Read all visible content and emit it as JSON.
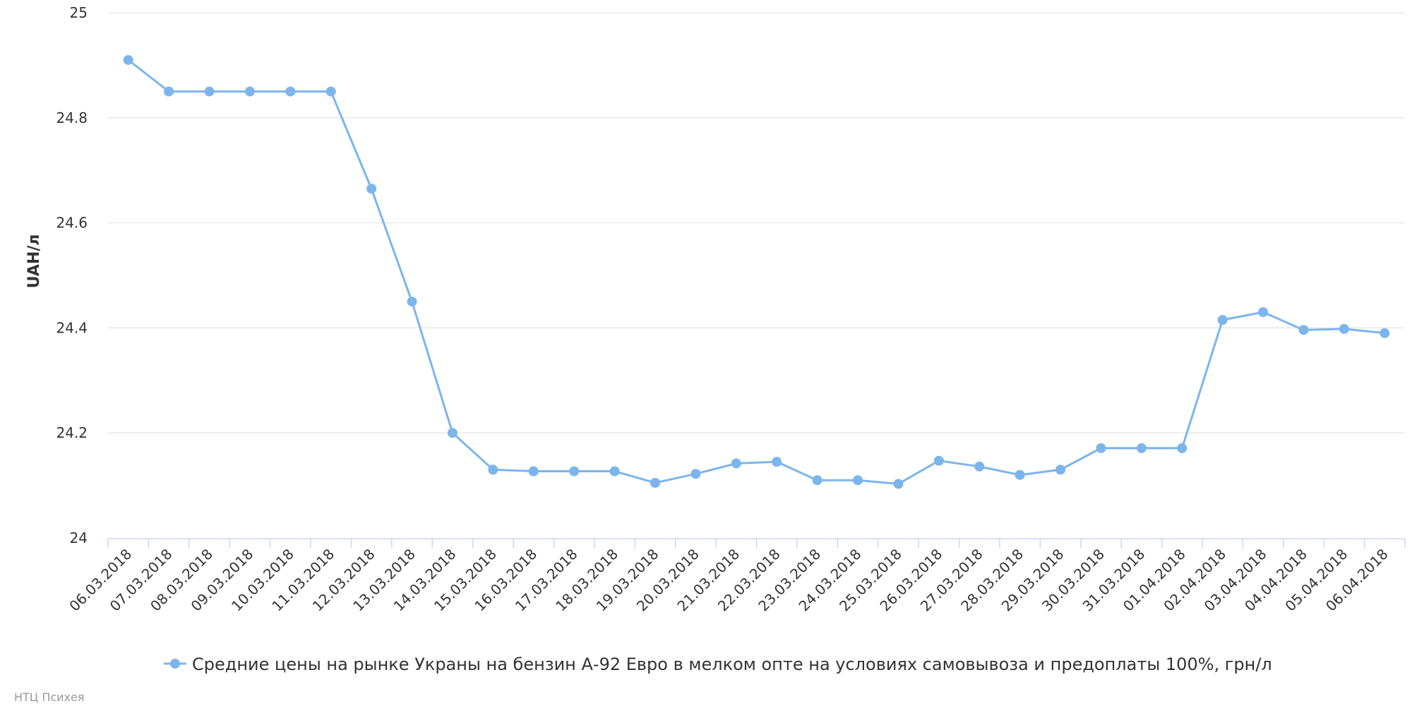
{
  "chart_data": {
    "type": "line",
    "title": "",
    "xlabel": "",
    "ylabel": "UAH/л",
    "ylim": [
      24,
      25
    ],
    "yticks": [
      "24",
      "24.2",
      "24.4",
      "24.6",
      "24.8",
      "25"
    ],
    "grid": true,
    "legend_position": "bottom-center",
    "categories": [
      "06.03.2018",
      "07.03.2018",
      "08.03.2018",
      "09.03.2018",
      "10.03.2018",
      "11.03.2018",
      "12.03.2018",
      "13.03.2018",
      "14.03.2018",
      "15.03.2018",
      "16.03.2018",
      "17.03.2018",
      "18.03.2018",
      "19.03.2018",
      "20.03.2018",
      "21.03.2018",
      "22.03.2018",
      "23.03.2018",
      "24.03.2018",
      "25.03.2018",
      "26.03.2018",
      "27.03.2018",
      "28.03.2018",
      "29.03.2018",
      "30.03.2018",
      "31.03.2018",
      "01.04.2018",
      "02.04.2018",
      "03.04.2018",
      "04.04.2018",
      "05.04.2018",
      "06.04.2018"
    ],
    "series": [
      {
        "name": "Средние цены на рынке Украны на бензин А-92 Евро в мелком опте на условиях самовывоза и предоплаты 100%, грн/л",
        "color": "#7cb5ec",
        "values": [
          24.91,
          24.85,
          24.85,
          24.85,
          24.85,
          24.85,
          24.665,
          24.45,
          24.2,
          24.13,
          24.127,
          24.127,
          24.127,
          24.105,
          24.122,
          24.142,
          24.145,
          24.11,
          24.11,
          24.103,
          24.147,
          24.136,
          24.12,
          24.13,
          24.171,
          24.171,
          24.171,
          24.415,
          24.43,
          24.396,
          24.398,
          24.39
        ]
      }
    ]
  },
  "credits": "НТЦ Психея"
}
